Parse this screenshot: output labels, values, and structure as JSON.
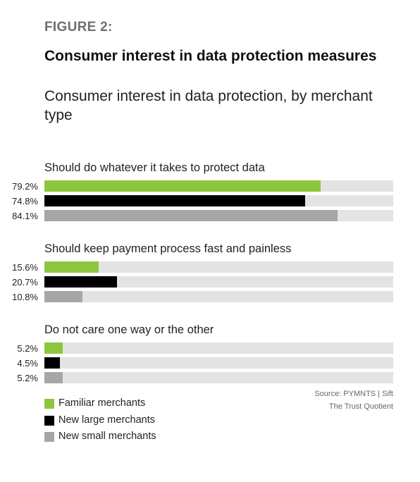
{
  "figure_label": "FIGURE 2:",
  "title": "Consumer interest in data protection measures",
  "subtitle": "Consumer interest in data protection, by merchant type",
  "source": {
    "line1": "Source: PYMNTS | Sift",
    "line2": "The Trust Quotient"
  },
  "colors": {
    "familiar": "#8cc63f",
    "new_large": "#000000",
    "new_small": "#a6a6a6",
    "track": "#e3e3e3"
  },
  "chart_data": {
    "type": "bar",
    "orientation": "horizontal",
    "xlim": [
      0,
      100
    ],
    "legend_position": "bottom-left",
    "groups": [
      {
        "title": "Should do whatever it takes to protect data",
        "bars": [
          {
            "series": "Familiar merchants",
            "value": 79.2,
            "label": "79.2%"
          },
          {
            "series": "New large merchants",
            "value": 74.8,
            "label": "74.8%"
          },
          {
            "series": "New small merchants",
            "value": 84.1,
            "label": "84.1%"
          }
        ]
      },
      {
        "title": "Should keep payment process fast and painless",
        "bars": [
          {
            "series": "Familiar merchants",
            "value": 15.6,
            "label": "15.6%"
          },
          {
            "series": "New large merchants",
            "value": 20.7,
            "label": "20.7%"
          },
          {
            "series": "New small merchants",
            "value": 10.8,
            "label": "10.8%"
          }
        ]
      },
      {
        "title": "Do not care one way or the other",
        "bars": [
          {
            "series": "Familiar merchants",
            "value": 5.2,
            "label": "5.2%"
          },
          {
            "series": "New large merchants",
            "value": 4.5,
            "label": "4.5%"
          },
          {
            "series": "New small merchants",
            "value": 5.2,
            "label": "5.2%"
          }
        ]
      }
    ],
    "legend": [
      {
        "name": "Familiar merchants",
        "color": "#8cc63f"
      },
      {
        "name": "New large merchants",
        "color": "#000000"
      },
      {
        "name": "New small merchants",
        "color": "#a6a6a6"
      }
    ]
  }
}
